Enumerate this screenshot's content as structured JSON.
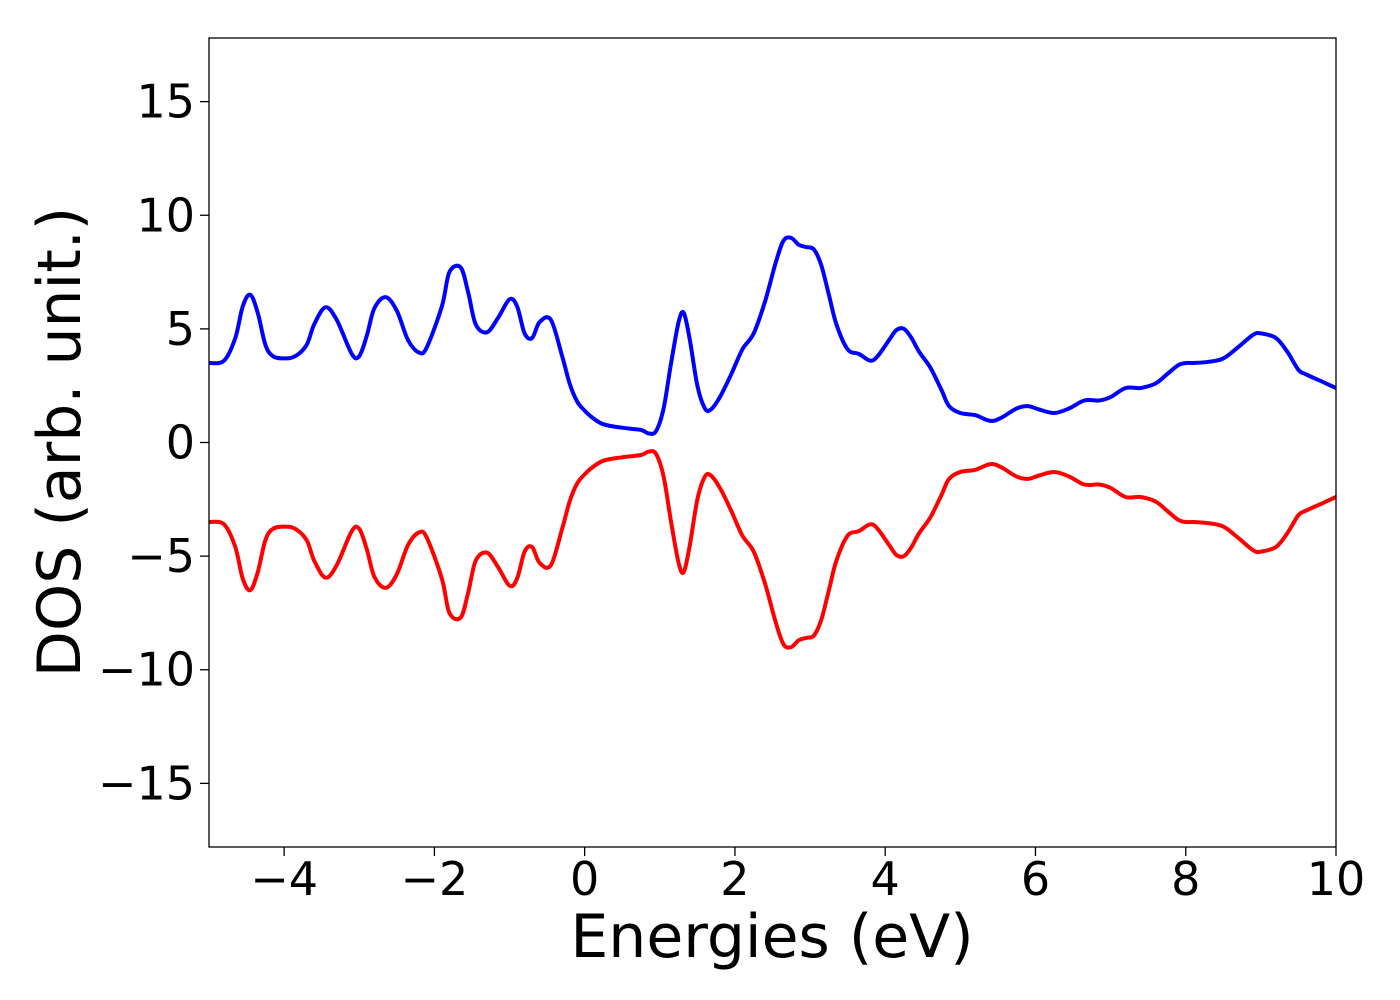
{
  "chart_data": {
    "type": "line",
    "title": "",
    "xlabel": "Energies (eV)",
    "ylabel": "DOS (arb. unit.)",
    "xlim": [
      -5,
      10
    ],
    "ylim": [
      -17.8,
      17.8
    ],
    "xticks": [
      -4,
      -2,
      0,
      2,
      4,
      6,
      8,
      10
    ],
    "xtick_labels": [
      "−4",
      "−2",
      "0",
      "2",
      "4",
      "6",
      "8",
      "10"
    ],
    "yticks": [
      15,
      10,
      5,
      0,
      -5,
      -10,
      -15
    ],
    "ytick_labels": [
      "15",
      "10",
      "5",
      "0",
      "−5",
      "−10",
      "−15"
    ],
    "grid": false,
    "legend": "none",
    "series": [
      {
        "color": "#0000ff",
        "x": [
          -5.0,
          -4.8,
          -4.65,
          -4.55,
          -4.45,
          -4.35,
          -4.25,
          -4.15,
          -4.0,
          -3.85,
          -3.7,
          -3.6,
          -3.45,
          -3.3,
          -3.1,
          -3.0,
          -2.9,
          -2.8,
          -2.65,
          -2.5,
          -2.35,
          -2.2,
          -2.1,
          -1.9,
          -1.8,
          -1.65,
          -1.55,
          -1.45,
          -1.3,
          -1.15,
          -1.0,
          -0.9,
          -0.8,
          -0.7,
          -0.6,
          -0.45,
          -0.3,
          -0.2,
          -0.1,
          0.0,
          0.1,
          0.25,
          0.5,
          0.75,
          0.85,
          0.95,
          1.05,
          1.15,
          1.25,
          1.32,
          1.4,
          1.5,
          1.6,
          1.68,
          1.8,
          1.95,
          2.1,
          2.25,
          2.4,
          2.55,
          2.65,
          2.75,
          2.85,
          2.95,
          3.05,
          3.15,
          3.25,
          3.35,
          3.5,
          3.65,
          3.8,
          3.9,
          4.05,
          4.15,
          4.25,
          4.35,
          4.45,
          4.6,
          4.75,
          4.85,
          5.0,
          5.2,
          5.4,
          5.55,
          5.75,
          5.9,
          6.05,
          6.25,
          6.45,
          6.65,
          6.85,
          7.0,
          7.2,
          7.4,
          7.6,
          7.75,
          7.9,
          8.0,
          8.1,
          8.3,
          8.5,
          8.7,
          8.9,
          9.0,
          9.2,
          9.35,
          9.5,
          9.6,
          9.8,
          10.0
        ],
        "y": [
          3.5,
          3.6,
          4.6,
          6.0,
          6.5,
          5.7,
          4.3,
          3.8,
          3.7,
          3.8,
          4.3,
          5.2,
          5.95,
          5.4,
          3.9,
          3.8,
          4.7,
          5.9,
          6.4,
          5.8,
          4.5,
          3.95,
          4.2,
          6.0,
          7.5,
          7.7,
          6.6,
          5.2,
          4.85,
          5.5,
          6.3,
          6.0,
          4.8,
          4.6,
          5.3,
          5.4,
          3.8,
          2.6,
          1.8,
          1.4,
          1.1,
          0.8,
          0.65,
          0.55,
          0.4,
          0.5,
          1.5,
          3.5,
          5.3,
          5.7,
          4.5,
          2.5,
          1.5,
          1.45,
          2.0,
          3.0,
          4.1,
          4.8,
          6.2,
          8.0,
          8.9,
          9.0,
          8.7,
          8.6,
          8.5,
          7.8,
          6.5,
          5.2,
          4.1,
          3.9,
          3.6,
          3.8,
          4.5,
          4.95,
          5.0,
          4.6,
          4.0,
          3.3,
          2.3,
          1.6,
          1.3,
          1.2,
          0.95,
          1.1,
          1.5,
          1.6,
          1.45,
          1.3,
          1.5,
          1.85,
          1.85,
          2.0,
          2.4,
          2.4,
          2.6,
          3.0,
          3.4,
          3.5,
          3.5,
          3.55,
          3.7,
          4.2,
          4.75,
          4.8,
          4.6,
          4.0,
          3.2,
          3.0,
          2.7,
          2.4
        ]
      },
      {
        "color": "#ff0000",
        "x": [
          -5.0,
          -4.8,
          -4.65,
          -4.55,
          -4.45,
          -4.35,
          -4.25,
          -4.15,
          -4.0,
          -3.85,
          -3.7,
          -3.6,
          -3.45,
          -3.3,
          -3.1,
          -3.0,
          -2.9,
          -2.8,
          -2.65,
          -2.5,
          -2.35,
          -2.2,
          -2.1,
          -1.9,
          -1.8,
          -1.65,
          -1.55,
          -1.45,
          -1.3,
          -1.15,
          -1.0,
          -0.9,
          -0.8,
          -0.7,
          -0.6,
          -0.45,
          -0.3,
          -0.2,
          -0.1,
          0.0,
          0.1,
          0.25,
          0.5,
          0.75,
          0.85,
          0.95,
          1.05,
          1.15,
          1.25,
          1.32,
          1.4,
          1.5,
          1.6,
          1.68,
          1.8,
          1.95,
          2.1,
          2.25,
          2.4,
          2.55,
          2.65,
          2.75,
          2.85,
          2.95,
          3.05,
          3.15,
          3.25,
          3.35,
          3.5,
          3.65,
          3.8,
          3.9,
          4.05,
          4.15,
          4.25,
          4.35,
          4.45,
          4.6,
          4.75,
          4.85,
          5.0,
          5.2,
          5.4,
          5.55,
          5.75,
          5.9,
          6.05,
          6.25,
          6.45,
          6.65,
          6.85,
          7.0,
          7.2,
          7.4,
          7.6,
          7.75,
          7.9,
          8.0,
          8.1,
          8.3,
          8.5,
          8.7,
          8.9,
          9.0,
          9.2,
          9.35,
          9.5,
          9.6,
          9.8,
          10.0
        ],
        "y": [
          -3.5,
          -3.6,
          -4.6,
          -6.0,
          -6.5,
          -5.7,
          -4.3,
          -3.8,
          -3.7,
          -3.8,
          -4.3,
          -5.2,
          -5.95,
          -5.4,
          -3.9,
          -3.8,
          -4.7,
          -5.9,
          -6.4,
          -5.8,
          -4.5,
          -3.95,
          -4.2,
          -6.0,
          -7.5,
          -7.7,
          -6.6,
          -5.2,
          -4.85,
          -5.5,
          -6.3,
          -6.0,
          -4.8,
          -4.6,
          -5.3,
          -5.4,
          -3.8,
          -2.6,
          -1.8,
          -1.4,
          -1.1,
          -0.8,
          -0.65,
          -0.55,
          -0.4,
          -0.5,
          -1.5,
          -3.5,
          -5.3,
          -5.7,
          -4.5,
          -2.5,
          -1.5,
          -1.45,
          -2.0,
          -3.0,
          -4.1,
          -4.8,
          -6.2,
          -8.0,
          -8.9,
          -9.0,
          -8.7,
          -8.6,
          -8.5,
          -7.8,
          -6.5,
          -5.2,
          -4.1,
          -3.9,
          -3.6,
          -3.8,
          -4.5,
          -4.95,
          -5.0,
          -4.6,
          -4.0,
          -3.3,
          -2.3,
          -1.6,
          -1.3,
          -1.2,
          -0.95,
          -1.1,
          -1.5,
          -1.6,
          -1.45,
          -1.3,
          -1.5,
          -1.85,
          -1.85,
          -2.0,
          -2.4,
          -2.4,
          -2.6,
          -3.0,
          -3.4,
          -3.5,
          -3.5,
          -3.55,
          -3.7,
          -4.2,
          -4.75,
          -4.8,
          -4.6,
          -4.0,
          -3.2,
          -3.0,
          -2.7,
          -2.4
        ]
      }
    ]
  }
}
